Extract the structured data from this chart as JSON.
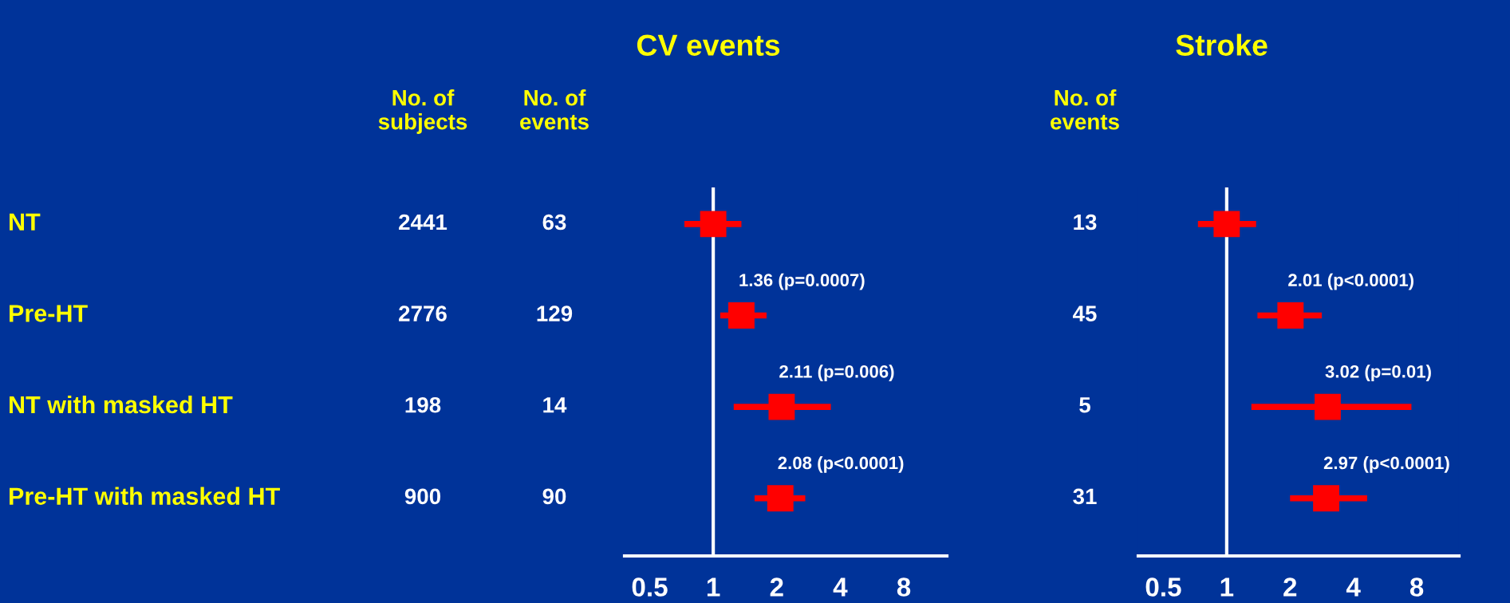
{
  "chart_data": [
    {
      "type": "other",
      "categories": [
        "NT",
        "Pre-HT",
        "NT with masked HT",
        "Pre-HT with masked HT"
      ],
      "annotations": [
        "No. of\nsubjects",
        "2441",
        "2776",
        "198",
        "900",
        "No. of\nevents",
        "63",
        "129",
        "14",
        "90"
      ]
    },
    {
      "type": "scatter",
      "title": "CV events",
      "orientation": "horizontal",
      "marker": "square",
      "log": "x",
      "categories": [
        null,
        null,
        null,
        null
      ],
      "series": [
        {
          "color": "#ff0000",
          "values": [
            1,
            1.36,
            2.11,
            2.08
          ],
          "errors": [
            [
              0.73,
              1.36
            ],
            [
              1.08,
              1.79
            ],
            [
              1.25,
              3.61
            ],
            [
              1.57,
              2.73
            ]
          ],
          "value_labels": [
            null,
            "1.36 (p=0.0007)",
            "2.11 (p=0.006)",
            "2.08 (p<0.0001)"
          ]
        }
      ],
      "xlim": [
        0.38,
        12.8
      ],
      "xticks": [
        0.5,
        1,
        2,
        4,
        8
      ],
      "ref_lines": [
        {
          "axis": "x",
          "value": 1,
          "color": "#ffffff"
        }
      ]
    },
    {
      "type": "scatter",
      "title": "Stroke",
      "orientation": "horizontal",
      "marker": "square",
      "log": "x",
      "categories": [
        null,
        null,
        null,
        null
      ],
      "series": [
        {
          "color": "#ff0000",
          "values": [
            1,
            2.01,
            3.02,
            2.97
          ],
          "errors": [
            [
              0.73,
              1.38
            ],
            [
              1.4,
              2.83
            ],
            [
              1.31,
              7.55
            ],
            [
              2.0,
              4.65
            ]
          ],
          "value_labels": [
            null,
            "2.01 (p<0.0001)",
            "3.02 (p=0.01)",
            "2.97 (p<0.0001)"
          ]
        }
      ],
      "xlim": [
        0.38,
        12.7
      ],
      "xticks": [
        0.5,
        1,
        2,
        4,
        8
      ],
      "ref_lines": [
        {
          "axis": "x",
          "value": 1,
          "color": "#ffffff"
        }
      ],
      "annotations": [
        "No. of\nevents",
        "13",
        "45",
        "5",
        "31"
      ]
    }
  ]
}
